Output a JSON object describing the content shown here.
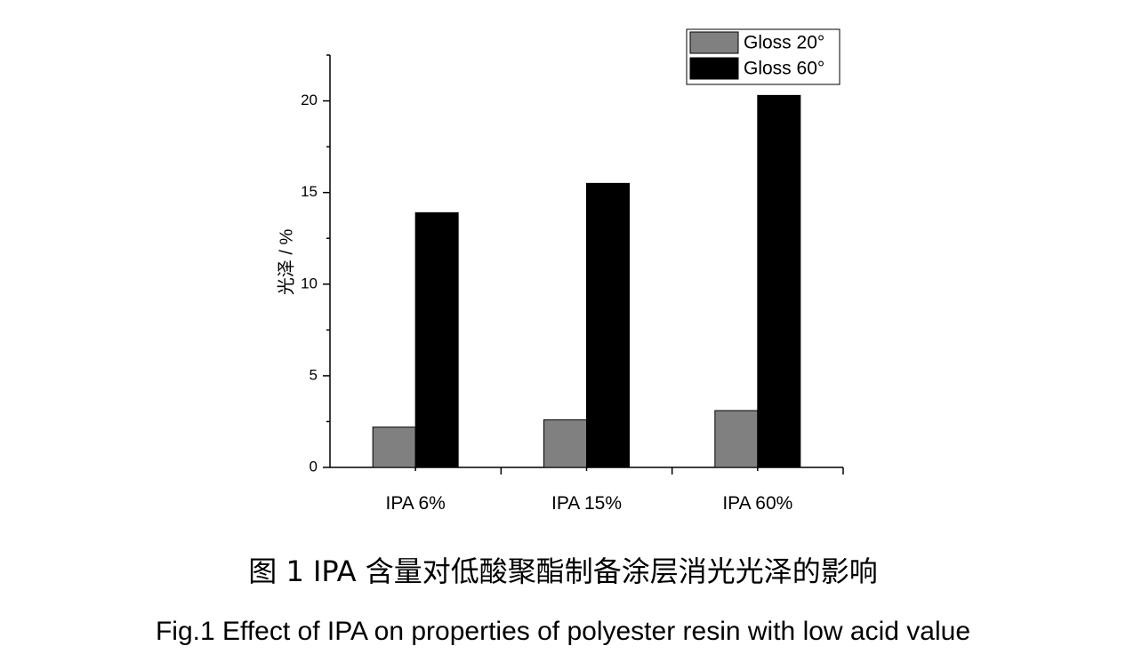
{
  "colors": {
    "gloss20": "#808080",
    "gloss60": "#000000",
    "axis": "#000000"
  },
  "chart_data": {
    "type": "bar",
    "categories": [
      "IPA  6%",
      "IPA  15%",
      "IPA  60%"
    ],
    "series": [
      {
        "name": "Gloss 20°",
        "values": [
          2.2,
          2.6,
          3.1
        ]
      },
      {
        "name": "Gloss 60°",
        "values": [
          13.9,
          15.5,
          20.3
        ]
      }
    ],
    "ylabel": "光泽 / %",
    "xlabel": "",
    "ylim": [
      0,
      22.5
    ],
    "yticks": [
      0,
      5,
      10,
      15,
      20
    ],
    "grid": false,
    "legend": "top-right"
  },
  "captions": {
    "chinese": "图 1 IPA 含量对低酸聚酯制备涂层消光光泽的影响",
    "english": "Fig.1 Effect of IPA on properties of polyester resin with low acid value"
  }
}
